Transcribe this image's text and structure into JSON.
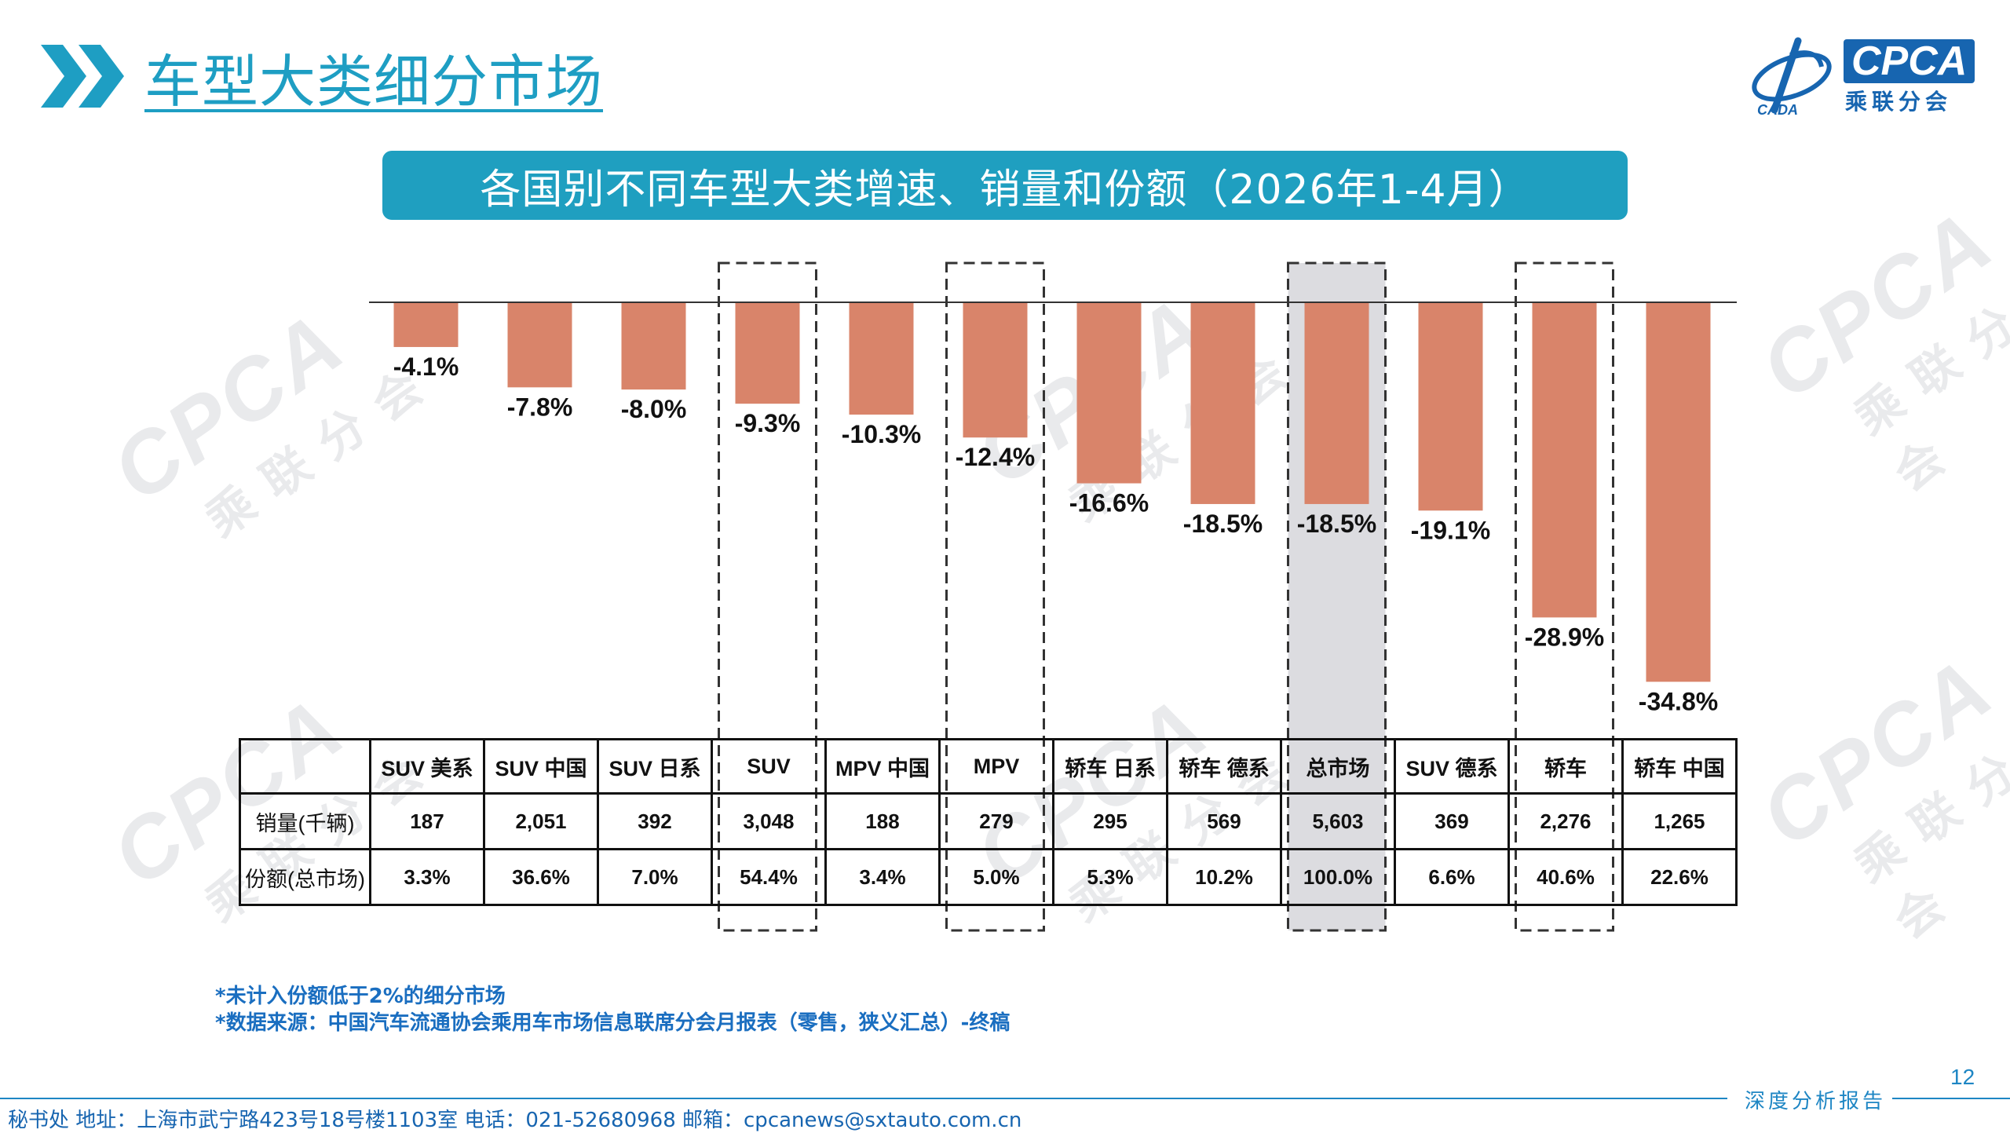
{
  "page": {
    "title": "车型大类细分市场",
    "banner": "各国别不同车型大类增速、销量和份额（2026年1-4月）",
    "logo": {
      "brand": "CPCA",
      "name_cn": "乘联分会",
      "mark_text": "CADA"
    },
    "watermark": {
      "brand": "CPCA",
      "name_cn": "乘联分会"
    },
    "colors": {
      "accent": "#1f9fc0",
      "bar": "#d9846a",
      "highlight": "#dcdce0",
      "brand_blue": "#1765b0"
    }
  },
  "chart_data": {
    "type": "bar",
    "categories": [
      "SUV 美系",
      "SUV 中国",
      "SUV 日系",
      "SUV",
      "MPV 中国",
      "MPV",
      "轿车 日系",
      "轿车 德系",
      "总市场",
      "SUV 德系",
      "轿车",
      "轿车 中国"
    ],
    "values": [
      -4.1,
      -7.8,
      -8.0,
      -9.3,
      -10.3,
      -12.4,
      -16.6,
      -18.5,
      -18.5,
      -19.1,
      -28.9,
      -34.8
    ],
    "data_labels": [
      "-4.1%",
      "-7.8%",
      "-8.0%",
      "-9.3%",
      "-10.3%",
      "-12.4%",
      "-16.6%",
      "-18.5%",
      "-18.5%",
      "-19.1%",
      "-28.9%",
      "-34.8%"
    ],
    "unit": "%",
    "ylim": [
      -36,
      0
    ],
    "grid": false,
    "legend": "none",
    "dashed_boxes": [
      "SUV",
      "MPV",
      "总市场",
      "轿车"
    ],
    "shaded": [
      "总市场"
    ]
  },
  "table": {
    "rows": [
      {
        "label": "销量(千辆)",
        "cells": [
          "187",
          "2,051",
          "392",
          "3,048",
          "188",
          "279",
          "295",
          "569",
          "5,603",
          "369",
          "2,276",
          "1,265"
        ]
      },
      {
        "label": "份额(总市场)",
        "cells": [
          "3.3%",
          "36.6%",
          "7.0%",
          "54.4%",
          "3.4%",
          "5.0%",
          "5.3%",
          "10.2%",
          "100.0%",
          "6.6%",
          "40.6%",
          "22.6%"
        ]
      }
    ]
  },
  "footnotes": {
    "note1": "*未计入份额低于2%的细分市场",
    "note2": "*数据来源：中国汽车流通协会乘用车市场信息联席分会月报表（零售，狭义汇总）-终稿"
  },
  "footer": {
    "address": "秘书处   地址：上海市武宁路423号18号楼1103室  电话：021-52680968   邮箱：cpcanews@sxtauto.com.cn",
    "report": "深度分析报告",
    "page_number": "12"
  }
}
